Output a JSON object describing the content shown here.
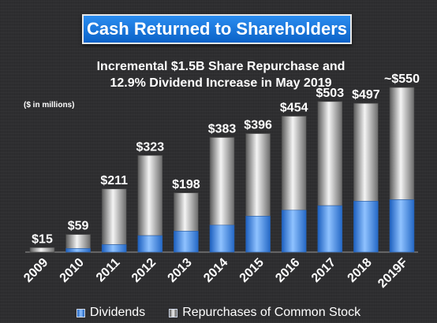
{
  "chart_data": {
    "type": "bar",
    "stacked": true,
    "title": "Cash Returned to Shareholders",
    "subtitle_lines": [
      "Incremental $1.5B Share Repurchase and",
      "12.9% Dividend Increase  in May 2019"
    ],
    "units_note": "($ in millions)",
    "categories": [
      "2009",
      "2010",
      "2011",
      "2012",
      "2013",
      "2014",
      "2015",
      "2016",
      "2017",
      "2018",
      "2019F"
    ],
    "total_labels": [
      "$15",
      "$59",
      "$211",
      "$323",
      "$198",
      "$383",
      "$396",
      "$454",
      "$503",
      "$497",
      "~$550"
    ],
    "totals": [
      15,
      59,
      211,
      323,
      198,
      383,
      396,
      454,
      503,
      497,
      550
    ],
    "series": [
      {
        "name": "Dividends",
        "values": [
          0,
          12,
          25,
          55,
          70,
          90,
          120,
          140,
          155,
          170,
          175
        ]
      },
      {
        "name": "Repurchases of Common Stock",
        "values": [
          15,
          47,
          186,
          268,
          128,
          293,
          276,
          314,
          348,
          327,
          375
        ]
      }
    ],
    "ylim": [
      0,
      600
    ],
    "grid": false,
    "legend_position": "bottom",
    "colors": {
      "dividends": "#4f95ee",
      "repurchases": "#d8d8d8"
    }
  }
}
